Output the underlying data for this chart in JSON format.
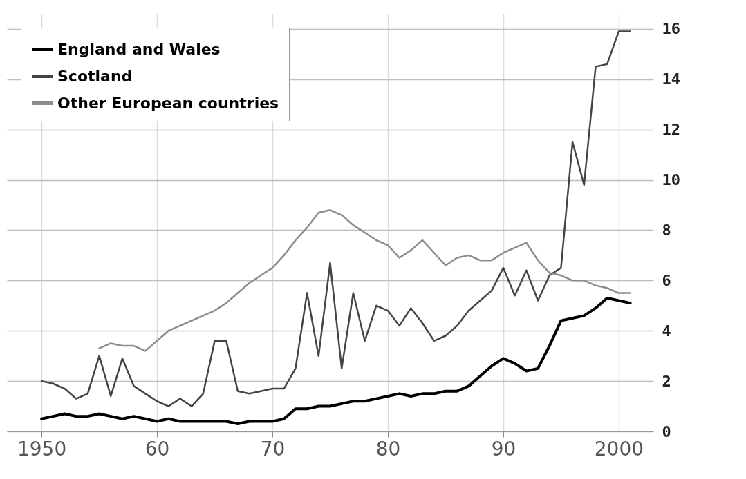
{
  "chart_data": {
    "type": "line",
    "x": [
      1950,
      1951,
      1952,
      1953,
      1954,
      1955,
      1956,
      1957,
      1958,
      1959,
      1960,
      1961,
      1962,
      1963,
      1964,
      1965,
      1966,
      1967,
      1968,
      1969,
      1970,
      1971,
      1972,
      1973,
      1974,
      1975,
      1976,
      1977,
      1978,
      1979,
      1980,
      1981,
      1982,
      1983,
      1984,
      1985,
      1986,
      1987,
      1988,
      1989,
      1990,
      1991,
      1992,
      1993,
      1994,
      1995,
      1996,
      1997,
      1998,
      1999,
      2000,
      2001
    ],
    "series": [
      {
        "name": "England and Wales",
        "color": "#000000",
        "values": [
          0.5,
          0.6,
          0.7,
          0.6,
          0.6,
          0.7,
          0.6,
          0.5,
          0.6,
          0.5,
          0.4,
          0.5,
          0.4,
          0.4,
          0.4,
          0.4,
          0.4,
          0.3,
          0.4,
          0.4,
          0.4,
          0.5,
          0.9,
          0.9,
          1.0,
          1.0,
          1.1,
          1.2,
          1.2,
          1.3,
          1.4,
          1.5,
          1.4,
          1.5,
          1.5,
          1.6,
          1.6,
          1.8,
          2.2,
          2.6,
          2.9,
          2.7,
          2.4,
          2.5,
          3.4,
          4.4,
          4.5,
          4.6,
          4.9,
          5.3,
          5.2,
          5.1
        ]
      },
      {
        "name": "Scotland",
        "color": "#444444",
        "values": [
          2.0,
          1.9,
          1.7,
          1.3,
          1.5,
          3.0,
          1.4,
          2.9,
          1.8,
          1.5,
          1.2,
          1.0,
          1.3,
          1.0,
          1.5,
          3.6,
          3.6,
          1.6,
          1.5,
          1.6,
          1.7,
          1.7,
          2.5,
          5.5,
          3.0,
          6.7,
          2.5,
          5.5,
          3.6,
          5.0,
          4.8,
          4.2,
          4.9,
          4.3,
          3.6,
          3.8,
          4.2,
          4.8,
          5.2,
          5.6,
          6.5,
          5.4,
          6.4,
          5.2,
          6.2,
          6.5,
          11.5,
          9.8,
          14.5,
          14.6,
          15.9,
          15.9
        ]
      },
      {
        "name": "Other European countries",
        "color": "#8c8c8c",
        "values": [
          null,
          null,
          null,
          null,
          null,
          3.3,
          3.5,
          3.4,
          3.4,
          3.2,
          3.6,
          4.0,
          4.2,
          4.4,
          4.6,
          4.8,
          5.1,
          5.5,
          5.9,
          6.2,
          6.5,
          7.0,
          7.6,
          8.1,
          8.7,
          8.8,
          8.6,
          8.2,
          7.9,
          7.6,
          7.4,
          6.9,
          7.2,
          7.6,
          7.1,
          6.6,
          6.9,
          7.0,
          6.8,
          6.8,
          7.1,
          7.3,
          7.5,
          6.8,
          6.3,
          6.2,
          6.0,
          6.0,
          5.8,
          5.7,
          5.5,
          5.5
        ]
      }
    ],
    "xlim": [
      1947,
      2003
    ],
    "ylim": [
      0,
      16.6
    ],
    "xticks": [
      1950,
      {
        "value": 1960,
        "label": "60"
      },
      {
        "value": 1970,
        "label": "70"
      },
      {
        "value": 1980,
        "label": "80"
      },
      {
        "value": 1990,
        "label": "90"
      },
      2000
    ],
    "yticks": [
      0,
      2,
      4,
      6,
      8,
      10,
      12,
      14,
      16
    ],
    "grid": true,
    "legend": "top left",
    "line_style": "solid",
    "marker": "none"
  }
}
